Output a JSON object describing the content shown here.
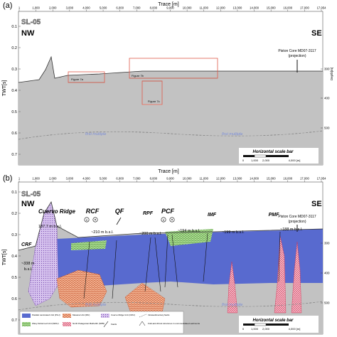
{
  "panel_a": {
    "label": "(a)",
    "profile": "SL-05",
    "nw": "NW",
    "se": "SE",
    "x_title": "Trace [m]",
    "x_ticks": [
      "1",
      "1,000",
      "2,000",
      "3,000",
      "4,000",
      "5,000",
      "6,000",
      "7,000",
      "8,000",
      "9,000",
      "10,000",
      "11,000",
      "12,000",
      "13,000",
      "14,000",
      "15,000",
      "16,000",
      "17,000",
      "17,954"
    ],
    "y_title": "TWT[s]",
    "y_ticks": [
      "0.1",
      "0.2",
      "0.3",
      "0.4",
      "0.5",
      "0.6",
      "0.7"
    ],
    "depth_title": "Depth[m]",
    "depth_ticks": [
      "300",
      "400",
      "500"
    ],
    "boxes": [
      "Figure 7a",
      "Figure 7b",
      "Figure 7c"
    ],
    "core": "Piston Core MD07-3117",
    "core_note": "(projection)",
    "multiple": [
      "first multiple",
      "first multiple"
    ],
    "scale_bar": {
      "title": "Horizontal scale bar",
      "ticks": [
        "0",
        "1,000",
        "2,000",
        "4,000 [m]"
      ]
    }
  },
  "panel_b": {
    "label": "(b)",
    "profile": "SL-05",
    "nw": "NW",
    "se": "SE",
    "x_title": "Trace [m]",
    "x_ticks": [
      "1",
      "1,000",
      "2,000",
      "3,000",
      "4,000",
      "5,000",
      "6,000",
      "7,000",
      "8,000",
      "9,000",
      "10,000",
      "11,000",
      "12,000",
      "13,000",
      "14,000",
      "15,000",
      "16,000",
      "17,000",
      "17,954"
    ],
    "y_title": "TWT[s]",
    "y_ticks": [
      "0.1",
      "0.2",
      "0.3",
      "0.4",
      "0.5",
      "0.6",
      "0.7"
    ],
    "depth_ticks": [
      "300",
      "400",
      "500"
    ],
    "features": [
      "Cuervo Ridge",
      "RCF",
      "QF",
      "RPF",
      "PCF",
      "IMF",
      "PMF",
      "CRF"
    ],
    "depths": [
      "187.7 m b.s.l.",
      "~210 m b.s.l.",
      "~200 m b.s.l.",
      "~194 m b.s.l.",
      "~199 m b.s.l.",
      "~188 m b.s.l.",
      "~338 m",
      "b.s.l."
    ],
    "core": "Piston Core MD07-3117",
    "core_note": "(projection)",
    "multiple": [
      "first multiple",
      "first multiple"
    ],
    "scale_bar": {
      "title": "Horizontal scale bar",
      "ticks": [
        "0",
        "1,000",
        "2,000",
        "4,000 [m]"
      ]
    },
    "legend": [
      {
        "text": "Parallel Laminated Unit (PLU)",
        "color": "#3b4fc4"
      },
      {
        "text": "Wavy Deformed Unit (WDU)",
        "color": "#86c46a"
      },
      {
        "text": "Mesana Unit (MU)",
        "color": "#e8845a"
      },
      {
        "text": "North Patagonian Batholith (NPB)",
        "color": "#e27a9a"
      },
      {
        "text": "Cuervo Ridge Unit (CRU)",
        "color": "#b489d8"
      },
      {
        "text": "Faults",
        "color": "#222222"
      },
      {
        "text": "Intrasedimentary faults",
        "color": "#222222"
      },
      {
        "text": "Fold-and-thrust structures in unconsolidated sediments",
        "color": "#222222"
      }
    ]
  },
  "colors": {
    "plu": "#4a5fd0",
    "wdu": "#7cc05e",
    "mu": "#e8845a",
    "npb": "#e0607a",
    "cru": "#b28bd8",
    "seismic": "#9a9a9a",
    "box": "#e05a4a"
  }
}
